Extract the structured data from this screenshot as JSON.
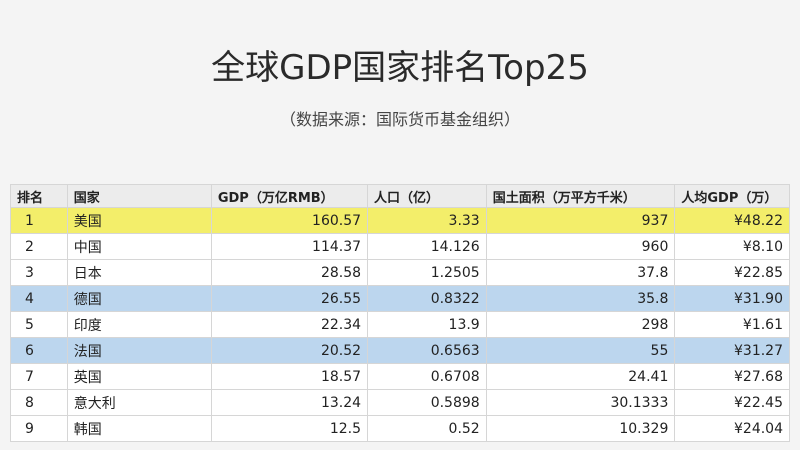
{
  "header": {
    "title": "全球GDP国家排名Top25",
    "subtitle": "（数据来源：国际货币基金组织）"
  },
  "table": {
    "columns": [
      "排名",
      "国家",
      "GDP（万亿RMB）",
      "人口（亿）",
      "国土面积（万平方千米）",
      "人均GDP（万）"
    ],
    "rows": [
      [
        "1",
        "美国",
        "160.57",
        "3.33",
        "937",
        "¥48.22"
      ],
      [
        "2",
        "中国",
        "114.37",
        "14.126",
        "960",
        "¥8.10"
      ],
      [
        "3",
        "日本",
        "28.58",
        "1.2505",
        "37.8",
        "¥22.85"
      ],
      [
        "4",
        "德国",
        "26.55",
        "0.8322",
        "35.8",
        "¥31.90"
      ],
      [
        "5",
        "印度",
        "22.34",
        "13.9",
        "298",
        "¥1.61"
      ],
      [
        "6",
        "法国",
        "20.52",
        "0.6563",
        "55",
        "¥31.27"
      ],
      [
        "7",
        "英国",
        "18.57",
        "0.6708",
        "24.41",
        "¥27.68"
      ],
      [
        "8",
        "意大利",
        "13.24",
        "0.5898",
        "30.1333",
        "¥22.45"
      ],
      [
        "9",
        "韩国",
        "12.5",
        "0.52",
        "10.329",
        "¥24.04"
      ]
    ]
  }
}
